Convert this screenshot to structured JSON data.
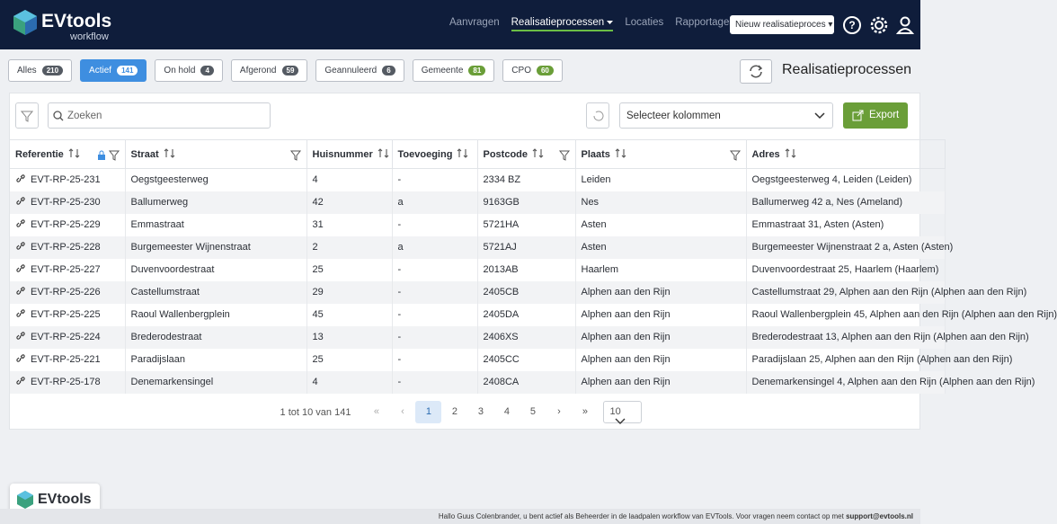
{
  "header": {
    "brand": "EVtools",
    "subbrand": "workflow",
    "nav": [
      "Aanvragen",
      "Realisatieprocessen",
      "Locaties",
      "Rapportages"
    ],
    "active_nav": 1,
    "new_button": "Nieuw realisatieproces"
  },
  "tabs": [
    {
      "label": "Alles",
      "count": 210
    },
    {
      "label": "Actief",
      "count": 141
    },
    {
      "label": "On hold",
      "count": 4
    },
    {
      "label": "Afgerond",
      "count": 59
    },
    {
      "label": "Geannuleerd",
      "count": 6
    },
    {
      "label": "Gemeente",
      "count": 81
    },
    {
      "label": "CPO",
      "count": 60
    }
  ],
  "active_tab": 1,
  "page_title": "Realisatieprocessen",
  "toolbar": {
    "search_placeholder": "Zoeken",
    "columns_select": "Selecteer kolommen",
    "export": "Export"
  },
  "table": {
    "columns": [
      "Referentie",
      "Straat",
      "Huisnummer",
      "Toevoeging",
      "Postcode",
      "Plaats",
      "Adres"
    ],
    "rows": [
      [
        "EVT-RP-25-231",
        "Oegstgeesterweg",
        "4",
        "-",
        "2334 BZ",
        "Leiden",
        "Oegstgeesterweg 4, Leiden (Leiden)"
      ],
      [
        "EVT-RP-25-230",
        "Ballumerweg",
        "42",
        "a",
        "9163GB",
        "Nes",
        "Ballumerweg 42 a, Nes (Ameland)"
      ],
      [
        "EVT-RP-25-229",
        "Emmastraat",
        "31",
        "-",
        "5721HA",
        "Asten",
        "Emmastraat 31, Asten (Asten)"
      ],
      [
        "EVT-RP-25-228",
        "Burgemeester Wijnenstraat",
        "2",
        "a",
        "5721AJ",
        "Asten",
        "Burgemeester Wijnenstraat 2 a, Asten (Asten)"
      ],
      [
        "EVT-RP-25-227",
        "Duvenvoordestraat",
        "25",
        "-",
        "2013AB",
        "Haarlem",
        "Duvenvoordestraat 25, Haarlem (Haarlem)"
      ],
      [
        "EVT-RP-25-226",
        "Castellumstraat",
        "29",
        "-",
        "2405CB",
        "Alphen aan den Rijn",
        "Castellumstraat 29, Alphen aan den Rijn (Alphen aan den Rijn)"
      ],
      [
        "EVT-RP-25-225",
        "Raoul Wallenbergplein",
        "45",
        "-",
        "2405DA",
        "Alphen aan den Rijn",
        "Raoul Wallenbergplein 45, Alphen aan den Rijn (Alphen aan den Rijn)"
      ],
      [
        "EVT-RP-25-224",
        "Brederodestraat",
        "13",
        "-",
        "2406XS",
        "Alphen aan den Rijn",
        "Brederodestraat 13, Alphen aan den Rijn (Alphen aan den Rijn)"
      ],
      [
        "EVT-RP-25-221",
        "Paradijslaan",
        "25",
        "-",
        "2405CC",
        "Alphen aan den Rijn",
        "Paradijslaan 25, Alphen aan den Rijn (Alphen aan den Rijn)"
      ],
      [
        "EVT-RP-25-178",
        "Denemarkensingel",
        "4",
        "-",
        "2408CA",
        "Alphen aan den Rijn",
        "Denemarkensingel 4, Alphen aan den Rijn (Alphen aan den Rijn)"
      ]
    ]
  },
  "pagination": {
    "summary": "1 tot 10 van 141",
    "pages": [
      1,
      2,
      3,
      4,
      5
    ],
    "current": 0,
    "page_size": 10
  },
  "footer": {
    "badge": "EVtools",
    "text": "Hallo Guus Colenbrander, u bent actief als Beheerder in de laadpalen workflow van EVTools. Voor vragen neem contact op met",
    "email": "support@evtools.nl"
  }
}
